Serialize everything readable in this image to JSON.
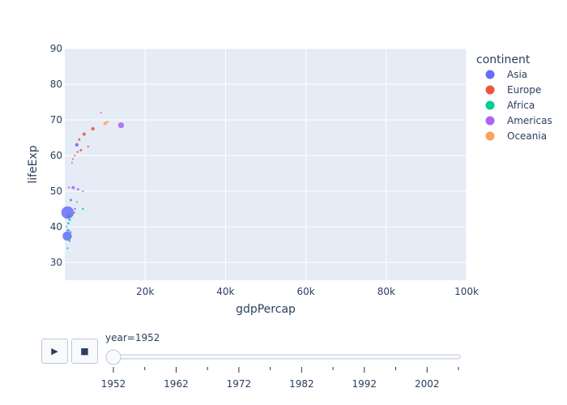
{
  "chart_data": {
    "type": "scatter",
    "xlabel": "gdpPercap",
    "ylabel": "lifeExp",
    "xlim": [
      0,
      100000
    ],
    "ylim": [
      25,
      90
    ],
    "x_ticks": [
      20000,
      40000,
      60000,
      80000,
      100000
    ],
    "x_tick_labels": [
      "20k",
      "40k",
      "60k",
      "80k",
      "100k"
    ],
    "y_ticks": [
      30,
      40,
      50,
      60,
      70,
      80,
      90
    ],
    "y_tick_labels": [
      "30",
      "40",
      "50",
      "60",
      "70",
      "80",
      "90"
    ],
    "grid": true,
    "legend_placement": "right",
    "legend_title": "continent",
    "series": [
      {
        "name": "Asia",
        "color": "#636efa",
        "points": [
          {
            "x": 700,
            "y": 44.0,
            "size": 8.0
          },
          {
            "x": 600,
            "y": 37.4,
            "size": 6.0
          },
          {
            "x": 3000,
            "y": 63.0,
            "size": 2.5
          },
          {
            "x": 1000,
            "y": 43.0,
            "size": 2.0
          },
          {
            "x": 1500,
            "y": 47.5,
            "size": 1.5
          },
          {
            "x": 900,
            "y": 39.0,
            "size": 1.5
          },
          {
            "x": 2500,
            "y": 45.0,
            "size": 1.2
          },
          {
            "x": 1200,
            "y": 36.0,
            "size": 1.2
          },
          {
            "x": 800,
            "y": 41.0,
            "size": 1.0
          },
          {
            "x": 4500,
            "y": 50.0,
            "size": 1.0
          },
          {
            "x": 1800,
            "y": 58.0,
            "size": 1.0
          }
        ]
      },
      {
        "name": "Europe",
        "color": "#EF553B",
        "points": [
          {
            "x": 7000,
            "y": 67.5,
            "size": 2.5
          },
          {
            "x": 4800,
            "y": 66.0,
            "size": 2.0
          },
          {
            "x": 3600,
            "y": 64.5,
            "size": 1.5
          },
          {
            "x": 3200,
            "y": 61.0,
            "size": 1.2
          },
          {
            "x": 4000,
            "y": 61.5,
            "size": 1.5
          },
          {
            "x": 2500,
            "y": 60.0,
            "size": 1.0
          },
          {
            "x": 5700,
            "y": 62.5,
            "size": 1.0
          },
          {
            "x": 2000,
            "y": 59.0,
            "size": 1.0
          },
          {
            "x": 9000,
            "y": 72.0,
            "size": 1.0
          },
          {
            "x": 1600,
            "y": 43.5,
            "size": 1.0
          }
        ]
      },
      {
        "name": "Africa",
        "color": "#00cc96",
        "points": [
          {
            "x": 900,
            "y": 36.5,
            "size": 1.5
          },
          {
            "x": 1200,
            "y": 42.0,
            "size": 1.5
          },
          {
            "x": 700,
            "y": 34.0,
            "size": 1.2
          },
          {
            "x": 4500,
            "y": 45.0,
            "size": 1.2
          },
          {
            "x": 1500,
            "y": 38.5,
            "size": 1.2
          },
          {
            "x": 500,
            "y": 40.0,
            "size": 1.0
          },
          {
            "x": 2000,
            "y": 43.5,
            "size": 1.0
          },
          {
            "x": 1000,
            "y": 41.0,
            "size": 1.0
          },
          {
            "x": 3000,
            "y": 47.0,
            "size": 1.0
          },
          {
            "x": 600,
            "y": 39.0,
            "size": 1.0
          }
        ]
      },
      {
        "name": "Americas",
        "color": "#ab63fa",
        "points": [
          {
            "x": 14000,
            "y": 68.5,
            "size": 4.0
          },
          {
            "x": 2100,
            "y": 51.0,
            "size": 2.0
          },
          {
            "x": 3300,
            "y": 50.5,
            "size": 1.5
          },
          {
            "x": 1000,
            "y": 51.0,
            "size": 1.2
          },
          {
            "x": 2400,
            "y": 44.0,
            "size": 1.2
          },
          {
            "x": 1700,
            "y": 45.0,
            "size": 1.0
          },
          {
            "x": 5900,
            "y": 62.5,
            "size": 1.0
          },
          {
            "x": 1200,
            "y": 37.6,
            "size": 1.0
          }
        ]
      },
      {
        "name": "Oceania",
        "color": "#FFA15A",
        "points": [
          {
            "x": 10000,
            "y": 69.0,
            "size": 2.0
          },
          {
            "x": 10600,
            "y": 69.4,
            "size": 1.5
          }
        ]
      }
    ]
  },
  "controls": {
    "play_icon": "play-icon",
    "stop_icon": "stop-icon",
    "play_glyph": "▶",
    "stop_glyph": "■",
    "slider_label": "year=1952",
    "slider_value": 1952,
    "slider_range": [
      1952,
      2007
    ],
    "slider_steps": [
      1952,
      1957,
      1962,
      1967,
      1972,
      1977,
      1982,
      1987,
      1992,
      1997,
      2002,
      2007
    ],
    "slider_tick_labels": [
      "1952",
      "1962",
      "1972",
      "1982",
      "1992",
      "2002"
    ]
  },
  "colors": {
    "plot_bg": "#e5ecf6",
    "grid": "#ffffff",
    "text": "#2a3f5f"
  }
}
